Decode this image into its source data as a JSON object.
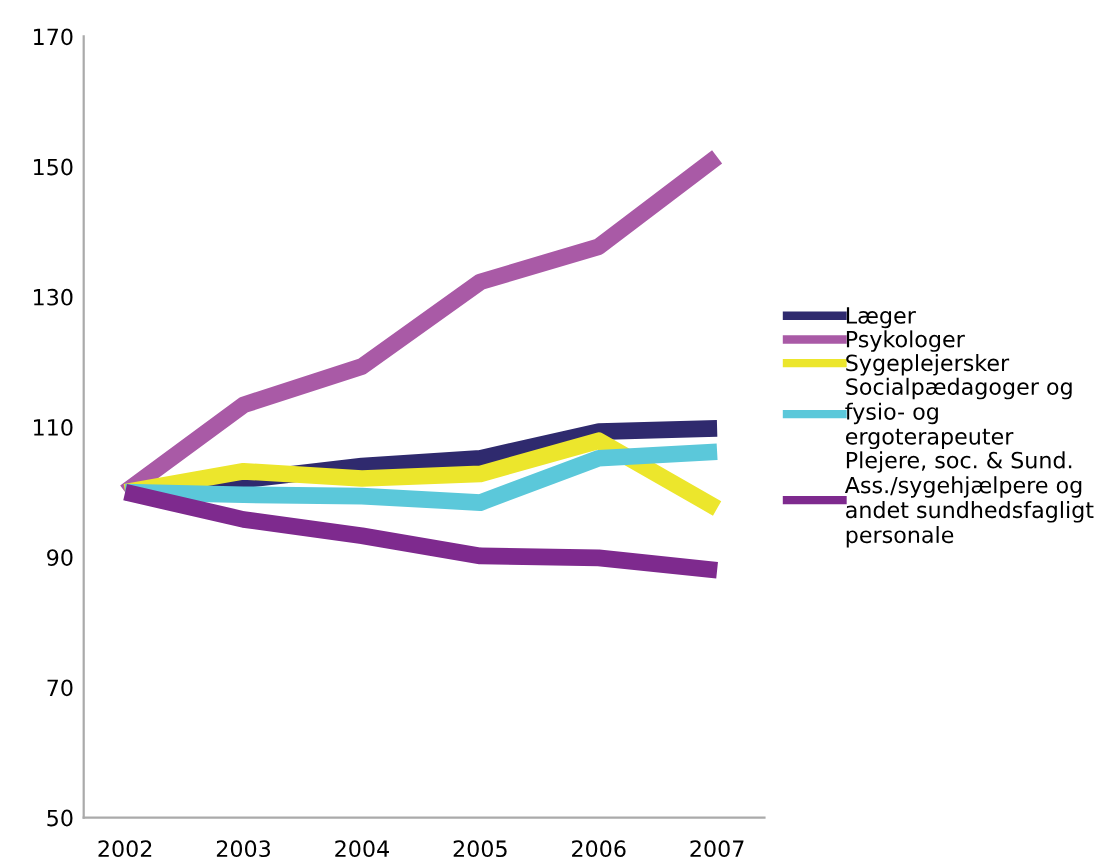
{
  "chart_data": {
    "type": "line",
    "categories": [
      "2002",
      "2003",
      "2004",
      "2005",
      "2006",
      "2007"
    ],
    "series": [
      {
        "name": "Læger",
        "color": "#2f2a6e",
        "values": [
          100,
          101.9,
          104,
          105.2,
          109.3,
          109.8
        ]
      },
      {
        "name": "Psykologer",
        "color": "#a95aa6",
        "values": [
          100,
          113.4,
          119.3,
          132.3,
          137.7,
          151.5
        ]
      },
      {
        "name": "Sygeplejersker",
        "color": "#ece62c",
        "values": [
          100,
          103.2,
          102.1,
          102.8,
          107.9,
          97.5
        ]
      },
      {
        "name": "Socialpædagoger og\nfysio- og\nergoterapeuter",
        "color": "#5bc8da",
        "values": [
          100,
          99.6,
          99.4,
          98.4,
          105.2,
          106.2
        ]
      },
      {
        "name": "Plejere, soc. & Sund.\nAss./sygehjælpere og\nandet sundhedsfagligt\npersonale",
        "color": "#7e2a8e",
        "values": [
          100,
          95.8,
          93.3,
          90.2,
          89.9,
          88
        ]
      }
    ],
    "ylim": [
      50,
      170
    ],
    "yticks": [
      50,
      70,
      90,
      110,
      130,
      150,
      170
    ],
    "grid": false,
    "legend": "right",
    "line_style": "solid",
    "marker": "none"
  }
}
